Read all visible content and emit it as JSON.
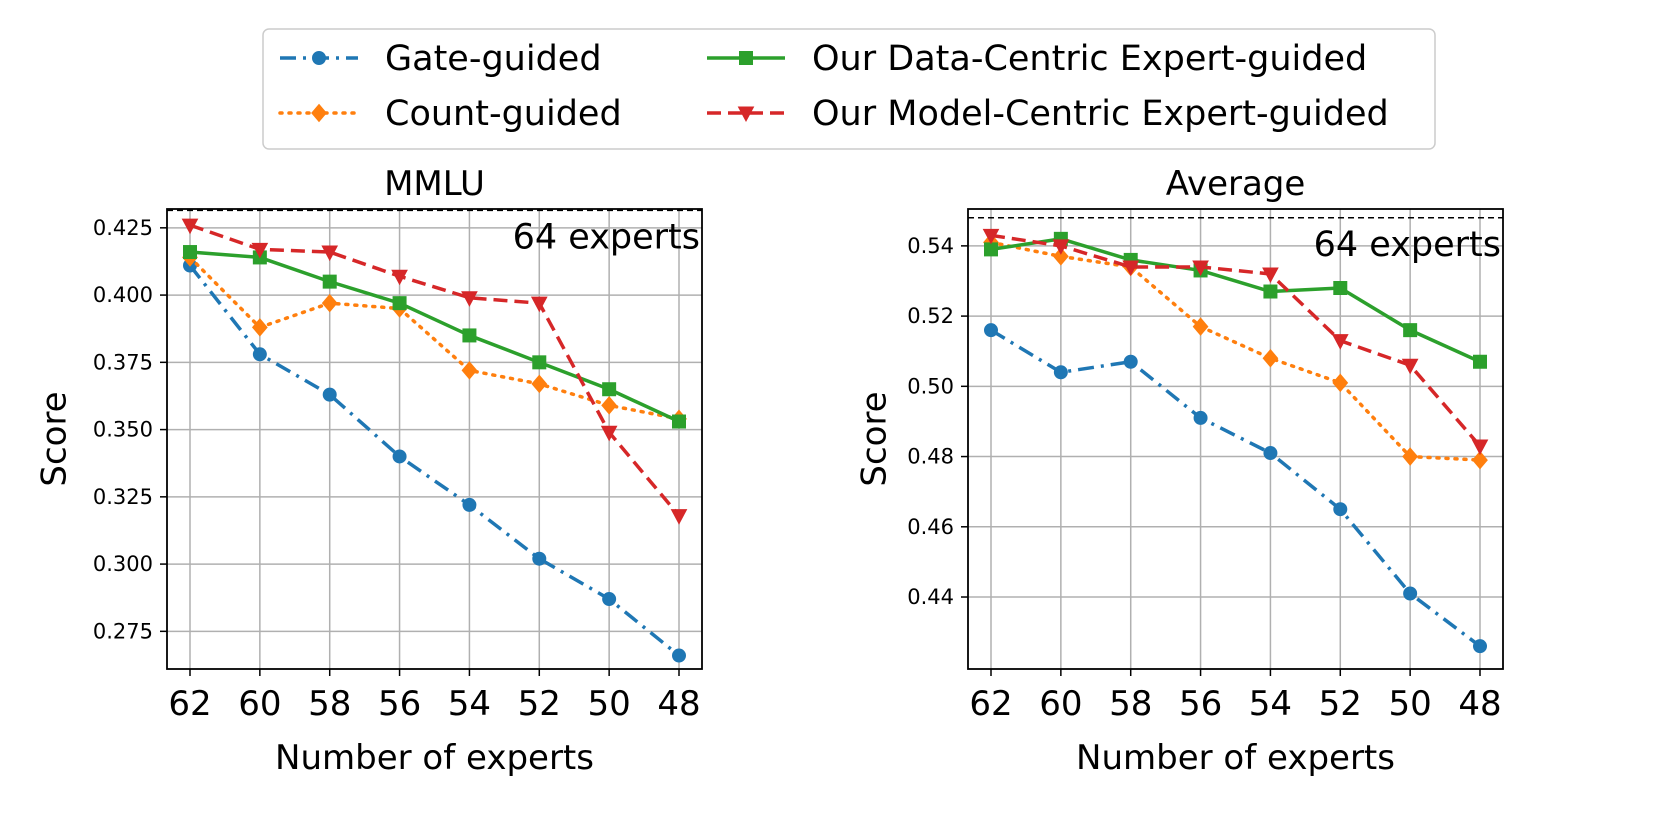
{
  "legend": {
    "placement": "top-center",
    "entries": [
      {
        "key": "gate",
        "label": "Gate-guided"
      },
      {
        "key": "data",
        "label": "Our Data-Centric Expert-guided"
      },
      {
        "key": "count",
        "label": "Count-guided"
      },
      {
        "key": "model",
        "label": "Our Model-Centric Expert-guided"
      }
    ]
  },
  "series_styles": {
    "gate": {
      "color": "#1f77b4",
      "marker": "circle",
      "dash": "dashdot"
    },
    "count": {
      "color": "#ff7f0e",
      "marker": "diamond",
      "dash": "dotted"
    },
    "data": {
      "color": "#2ca02c",
      "marker": "square",
      "dash": "solid"
    },
    "model": {
      "color": "#d62728",
      "marker": "triangle-down",
      "dash": "dashed"
    }
  },
  "chart_data": [
    {
      "type": "line",
      "title": "MMLU",
      "xlabel": "Number of experts",
      "ylabel": "Score",
      "x": [
        62,
        60,
        58,
        56,
        54,
        52,
        50,
        48
      ],
      "x_tick_labels": [
        "62",
        "60",
        "58",
        "56",
        "54",
        "52",
        "50",
        "48"
      ],
      "ylim": [
        0.261,
        0.432
      ],
      "y_ticks": [
        0.275,
        0.3,
        0.325,
        0.35,
        0.375,
        0.4,
        0.425
      ],
      "y_tick_labels": [
        "0.275",
        "0.300",
        "0.325",
        "0.350",
        "0.375",
        "0.400",
        "0.425"
      ],
      "grid": true,
      "reference_line": {
        "y": 0.4315,
        "label": "64 experts"
      },
      "series": [
        {
          "key": "gate",
          "name": "Gate-guided",
          "values": [
            0.411,
            0.378,
            0.363,
            0.34,
            0.322,
            0.302,
            0.287,
            0.266
          ]
        },
        {
          "key": "count",
          "name": "Count-guided",
          "values": [
            0.414,
            0.388,
            0.397,
            0.395,
            0.372,
            0.367,
            0.359,
            0.354
          ]
        },
        {
          "key": "data",
          "name": "Our Data-Centric Expert-guided",
          "values": [
            0.416,
            0.414,
            0.405,
            0.397,
            0.385,
            0.375,
            0.365,
            0.353
          ]
        },
        {
          "key": "model",
          "name": "Our Model-Centric Expert-guided",
          "values": [
            0.426,
            0.417,
            0.416,
            0.407,
            0.399,
            0.397,
            0.349,
            0.318
          ]
        }
      ]
    },
    {
      "type": "line",
      "title": "Average",
      "xlabel": "Number of experts",
      "ylabel": "Score",
      "x": [
        62,
        60,
        58,
        56,
        54,
        52,
        50,
        48
      ],
      "x_tick_labels": [
        "62",
        "60",
        "58",
        "56",
        "54",
        "52",
        "50",
        "48"
      ],
      "ylim": [
        0.4195,
        0.5505
      ],
      "y_ticks": [
        0.44,
        0.46,
        0.48,
        0.5,
        0.52,
        0.54
      ],
      "y_tick_labels": [
        "0.44",
        "0.46",
        "0.48",
        "0.50",
        "0.52",
        "0.54"
      ],
      "grid": true,
      "reference_line": {
        "y": 0.548,
        "label": "64 experts"
      },
      "series": [
        {
          "key": "gate",
          "name": "Gate-guided",
          "values": [
            0.516,
            0.504,
            0.507,
            0.491,
            0.481,
            0.465,
            0.441,
            0.426
          ]
        },
        {
          "key": "count",
          "name": "Count-guided",
          "values": [
            0.541,
            0.537,
            0.534,
            0.517,
            0.508,
            0.501,
            0.48,
            0.479
          ]
        },
        {
          "key": "data",
          "name": "Our Data-Centric Expert-guided",
          "values": [
            0.539,
            0.542,
            0.536,
            0.533,
            0.527,
            0.528,
            0.516,
            0.507
          ]
        },
        {
          "key": "model",
          "name": "Our Model-Centric Expert-guided",
          "values": [
            0.543,
            0.54,
            0.534,
            0.534,
            0.532,
            0.513,
            0.506,
            0.483
          ]
        }
      ]
    }
  ]
}
